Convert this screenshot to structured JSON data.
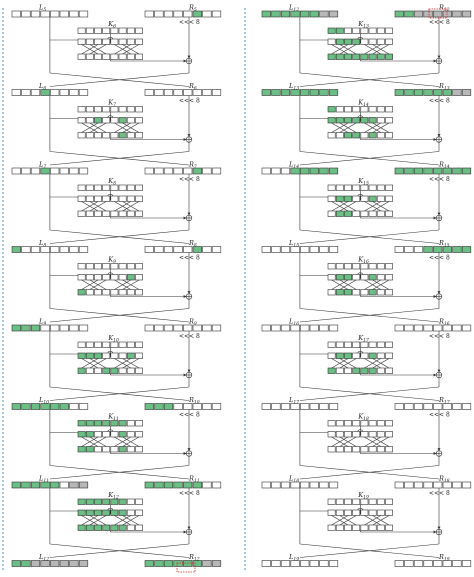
{
  "colors": {
    "active": "#6cbf84",
    "partial": "#b8b8b8",
    "empty": "#ffffff",
    "divider": "#4a8fd6",
    "highlight": "#d62728"
  },
  "rotation_label": "<<< 8",
  "columns": [
    {
      "rounds": [
        {
          "l_main": "L",
          "l_sub": "5",
          "r_main": "R",
          "r_sub": "5",
          "k_main": "K",
          "k_sub": "6",
          "state_left": "00000000",
          "state_right": "00000100",
          "key_row": "00000000",
          "mix_top": "00000000",
          "mix_bottom": "00000000"
        },
        {
          "l_main": "L",
          "l_sub": "6",
          "r_main": "R",
          "r_sub": "6",
          "k_main": "K",
          "k_sub": "7",
          "state_left": "00010000",
          "state_right": "00000000",
          "key_row": "00000000",
          "mix_top": "00100100",
          "mix_bottom": "00000100"
        },
        {
          "l_main": "L",
          "l_sub": "7",
          "r_main": "R",
          "r_sub": "7",
          "k_main": "K",
          "k_sub": "8",
          "state_left": "00010000",
          "state_right": "00000100",
          "key_row": "00000000",
          "mix_top": "00000000",
          "mix_bottom": "00000000"
        },
        {
          "l_main": "L",
          "l_sub": "8",
          "r_main": "R",
          "r_sub": "8",
          "k_main": "K",
          "k_sub": "9",
          "state_left": "10000000",
          "state_right": "00000100",
          "key_row": "00000000",
          "mix_top": "00000010",
          "mix_bottom": "10000000"
        },
        {
          "l_main": "L",
          "l_sub": "9",
          "r_main": "R",
          "r_sub": "9",
          "k_main": "K",
          "k_sub": "10",
          "state_left": "11100000",
          "state_right": "00000000",
          "key_row": "00000000",
          "mix_top": "11100010",
          "mix_bottom": "10011000"
        },
        {
          "l_main": "L",
          "l_sub": "10",
          "r_main": "R",
          "r_sub": "10",
          "k_main": "K",
          "k_sub": "11",
          "state_left": "11111100",
          "state_right": "11100000",
          "key_row": "11111100",
          "mix_top": "11000100",
          "mix_bottom": "11000100"
        },
        {
          "l_main": "L",
          "l_sub": "11",
          "r_main": "R",
          "r_sub": "11",
          "k_main": "K",
          "k_sub": "12",
          "state_left": "11111022",
          "state_right": "11111100",
          "key_row": "11111100",
          "mix_top": "11111100",
          "mix_bottom": "11111100"
        },
        {
          "l_main": "L",
          "l_sub": "12",
          "r_main": "R",
          "r_sub": "12",
          "state_left": "11222222",
          "state_right": "11111122"
        }
      ]
    },
    {
      "rounds": [
        {
          "l_main": "L",
          "l_sub": "12",
          "r_main": "R",
          "r_sub": "12",
          "k_main": "K",
          "k_sub": "13",
          "state_left": "11111122",
          "state_right": "11222222",
          "key_row": "11000000",
          "mix_top": "01110000",
          "mix_bottom": "11111111"
        },
        {
          "l_main": "L",
          "l_sub": "13",
          "r_main": "R",
          "r_sub": "13",
          "k_main": "K",
          "k_sub": "14",
          "state_left": "11111111",
          "state_right": "11111122",
          "key_row": "10000000",
          "mix_top": "11111100",
          "mix_bottom": "00110100"
        },
        {
          "l_main": "L",
          "l_sub": "14",
          "r_main": "R",
          "r_sub": "14",
          "k_main": "K",
          "k_sub": "15",
          "state_left": "00011111",
          "state_right": "11111111",
          "key_row": "00000000",
          "mix_top": "01100100",
          "mix_bottom": "01100000"
        },
        {
          "l_main": "L",
          "l_sub": "15",
          "r_main": "R",
          "r_sub": "15",
          "k_main": "K",
          "k_sub": "16",
          "state_left": "00000000",
          "state_right": "00011111",
          "key_row": "00000000",
          "mix_top": "01100100",
          "mix_bottom": "01100100"
        },
        {
          "l_main": "L",
          "l_sub": "16",
          "r_main": "R",
          "r_sub": "16",
          "k_main": "K",
          "k_sub": "17",
          "state_left": "00000000",
          "state_right": "00000000",
          "key_row": "00000000",
          "mix_top": "01100100",
          "mix_bottom": "10011100"
        },
        {
          "l_main": "L",
          "l_sub": "17",
          "r_main": "R",
          "r_sub": "17",
          "k_main": "K",
          "k_sub": "18",
          "state_left": "00000000",
          "state_right": "00000000",
          "key_row": "00000000",
          "mix_top": "00000000",
          "mix_bottom": "00000000"
        },
        {
          "l_main": "L",
          "l_sub": "18",
          "r_main": "R",
          "r_sub": "18",
          "k_main": "K",
          "k_sub": "19",
          "state_left": "00000000",
          "state_right": "00000000",
          "key_row": "00000000",
          "mix_top": "00000000",
          "mix_bottom": "00000000"
        },
        {
          "l_main": "L",
          "l_sub": "19",
          "r_main": "R",
          "r_sub": "19",
          "state_left": "00000000",
          "state_right": "00000000"
        }
      ]
    }
  ]
}
